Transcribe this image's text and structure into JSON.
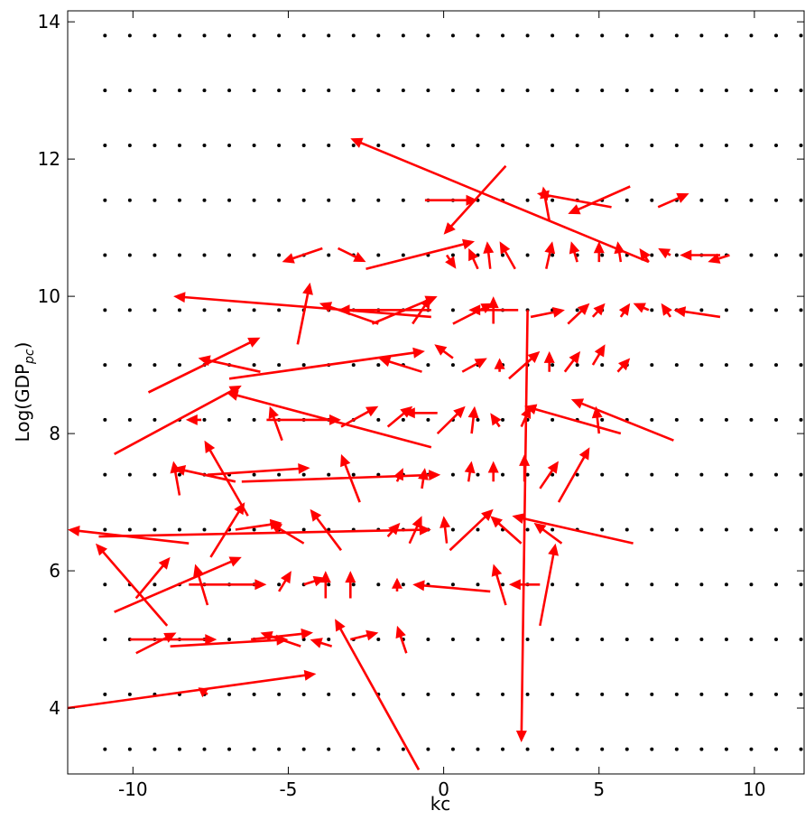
{
  "chart_data": {
    "type": "quiver",
    "xlabel": "kc",
    "ylabel": {
      "base": "Log(GDP",
      "sub": "pc",
      "end": ")"
    },
    "xlim": [
      -12.1,
      11.6
    ],
    "ylim": [
      3.04,
      14.16
    ],
    "xticks": [
      -10,
      -5,
      0,
      5,
      10
    ],
    "yticks": [
      4,
      6,
      8,
      10,
      12,
      14
    ],
    "dot_color": "#000000",
    "color": "#ff0000",
    "dots_x": [
      -10.9,
      -10.1,
      -9.3,
      -8.5,
      -7.7,
      -6.9,
      -6.1,
      -5.3,
      -4.5,
      -3.7,
      -2.9,
      -2.1,
      -1.3,
      -0.5,
      0.3,
      1.1,
      1.9,
      2.7,
      3.5,
      4.3,
      5.1,
      5.9,
      6.7,
      7.5,
      8.3,
      9.1,
      9.9,
      10.7,
      11.5
    ],
    "dots_y": [
      3.4,
      4.2,
      5.0,
      5.8,
      6.6,
      7.4,
      8.2,
      9.0,
      9.8,
      10.6,
      11.4,
      12.2,
      13.0,
      13.8
    ],
    "arrows": [
      [
        6.6,
        10.5,
        -9.6,
        1.8
      ],
      [
        2.0,
        11.9,
        -2.0,
        -1.0
      ],
      [
        -0.6,
        11.4,
        1.7,
        0
      ],
      [
        5.4,
        11.3,
        -2.4,
        0.2
      ],
      [
        6.0,
        11.6,
        -2.0,
        -0.4
      ],
      [
        3.4,
        11.1,
        -0.2,
        0.5
      ],
      [
        6.9,
        11.3,
        1.0,
        0.2
      ],
      [
        -2.5,
        10.4,
        3.5,
        0.4
      ],
      [
        -3.9,
        10.7,
        -1.3,
        -0.2
      ],
      [
        -3.4,
        10.7,
        0.9,
        -0.2
      ],
      [
        0.1,
        10.6,
        0.3,
        -0.2
      ],
      [
        1.1,
        10.4,
        -0.3,
        0.3
      ],
      [
        1.5,
        10.4,
        -0.1,
        0.4
      ],
      [
        2.3,
        10.4,
        -0.5,
        0.4
      ],
      [
        3.3,
        10.4,
        0.2,
        0.4
      ],
      [
        4.3,
        10.5,
        -0.2,
        0.3
      ],
      [
        5.0,
        10.5,
        0,
        0.3
      ],
      [
        5.7,
        10.5,
        -0.1,
        0.3
      ],
      [
        6.6,
        10.5,
        -0.3,
        0.2
      ],
      [
        7.3,
        10.6,
        -0.4,
        0.1
      ],
      [
        8.9,
        10.6,
        -1.3,
        0
      ],
      [
        9.2,
        10.6,
        -0.7,
        -0.1
      ],
      [
        -0.4,
        9.7,
        -8.3,
        0.3
      ],
      [
        -4.7,
        9.3,
        0.4,
        0.9
      ],
      [
        -2.1,
        9.6,
        -1.9,
        0.3
      ],
      [
        -0.4,
        9.8,
        -3.0,
        0
      ],
      [
        -2.3,
        9.6,
        2.1,
        0.4
      ],
      [
        -1.0,
        9.6,
        0.6,
        0.4
      ],
      [
        0.3,
        9.6,
        1.3,
        0.3
      ],
      [
        1.6,
        9.6,
        0,
        0.4
      ],
      [
        2.4,
        9.8,
        -1.6,
        0
      ],
      [
        2.8,
        9.7,
        1.1,
        0.1
      ],
      [
        4.0,
        9.6,
        0.7,
        0.3
      ],
      [
        4.8,
        9.7,
        0.4,
        0.2
      ],
      [
        5.7,
        9.7,
        0.3,
        0.2
      ],
      [
        6.6,
        9.8,
        -0.5,
        0.1
      ],
      [
        7.3,
        9.7,
        -0.3,
        0.2
      ],
      [
        8.9,
        9.7,
        -1.5,
        0.1
      ],
      [
        2.7,
        9.8,
        -0.2,
        -6.3
      ],
      [
        -9.5,
        8.6,
        3.6,
        0.8
      ],
      [
        -6.9,
        8.8,
        6.3,
        0.4
      ],
      [
        -5.9,
        8.9,
        -2.0,
        0.2
      ],
      [
        -0.7,
        8.9,
        -1.4,
        0.2
      ],
      [
        0.3,
        9.1,
        -0.6,
        0.2
      ],
      [
        0.6,
        8.9,
        0.8,
        0.2
      ],
      [
        1.8,
        8.9,
        0,
        0.2
      ],
      [
        2.1,
        8.8,
        1.0,
        0.4
      ],
      [
        3.4,
        8.9,
        0,
        0.3
      ],
      [
        3.9,
        8.9,
        0.5,
        0.3
      ],
      [
        4.8,
        9.0,
        0.4,
        0.3
      ],
      [
        5.6,
        8.9,
        0.4,
        0.2
      ],
      [
        -10.6,
        7.7,
        4.1,
        1.0
      ],
      [
        -0.4,
        7.8,
        -6.6,
        0.8
      ],
      [
        -7.8,
        8.2,
        -0.5,
        0
      ],
      [
        -5.7,
        8.2,
        2.4,
        0
      ],
      [
        -5.2,
        7.9,
        -0.4,
        0.5
      ],
      [
        -3.3,
        8.1,
        1.2,
        0.3
      ],
      [
        -1.8,
        8.1,
        0.8,
        0.3
      ],
      [
        -0.2,
        8.3,
        -1.1,
        0
      ],
      [
        -0.2,
        8.0,
        0.9,
        0.4
      ],
      [
        0.9,
        8.0,
        0.1,
        0.4
      ],
      [
        1.8,
        8.1,
        -0.3,
        0.2
      ],
      [
        2.5,
        8.1,
        0.3,
        0.3
      ],
      [
        5.7,
        8.0,
        -3.1,
        0.4
      ],
      [
        7.4,
        7.9,
        -3.3,
        0.6
      ],
      [
        5.0,
        8.0,
        -0.1,
        0.4
      ],
      [
        -8.5,
        7.1,
        -0.2,
        0.5
      ],
      [
        -6.3,
        6.8,
        -1.4,
        1.1
      ],
      [
        -6.7,
        7.3,
        -2.0,
        0.2
      ],
      [
        -7.6,
        7.4,
        3.3,
        0.1
      ],
      [
        -6.5,
        7.3,
        6.4,
        0.1
      ],
      [
        -2.7,
        7.0,
        -0.6,
        0.7
      ],
      [
        -1.5,
        7.3,
        0.2,
        0.2
      ],
      [
        -0.7,
        7.2,
        0.1,
        0.3
      ],
      [
        0.8,
        7.3,
        0.1,
        0.3
      ],
      [
        1.6,
        7.3,
        0,
        0.3
      ],
      [
        2.6,
        7.3,
        0,
        0.4
      ],
      [
        3.1,
        7.2,
        0.6,
        0.4
      ],
      [
        3.7,
        7.0,
        1.0,
        0.8
      ],
      [
        -8.2,
        6.4,
        -3.9,
        0.2
      ],
      [
        -11.1,
        6.5,
        10.7,
        0.1
      ],
      [
        -7.5,
        6.2,
        1.1,
        0.8
      ],
      [
        -6.7,
        6.6,
        1.5,
        0.1
      ],
      [
        -4.5,
        6.4,
        -1.1,
        0.3
      ],
      [
        -3.3,
        6.3,
        -1.0,
        0.6
      ],
      [
        -1.8,
        6.5,
        0.4,
        0.2
      ],
      [
        -1.1,
        6.4,
        0.4,
        0.4
      ],
      [
        0.1,
        6.4,
        -0.1,
        0.4
      ],
      [
        0.2,
        6.3,
        1.4,
        0.6
      ],
      [
        2.5,
        6.4,
        -1.0,
        0.4
      ],
      [
        6.1,
        6.4,
        -3.9,
        0.4
      ],
      [
        3.8,
        6.4,
        -0.9,
        0.3
      ],
      [
        -8.9,
        5.2,
        -2.3,
        1.2
      ],
      [
        -9.9,
        5.6,
        1.1,
        0.6
      ],
      [
        -10.6,
        5.4,
        4.1,
        0.8
      ],
      [
        -7.6,
        5.5,
        -0.4,
        0.6
      ],
      [
        -8.2,
        5.8,
        2.5,
        0
      ],
      [
        -5.3,
        5.7,
        0.4,
        0.3
      ],
      [
        -4.5,
        5.8,
        0.7,
        0.1
      ],
      [
        -3.8,
        5.6,
        0,
        0.4
      ],
      [
        -3.0,
        5.6,
        0,
        0.4
      ],
      [
        -1.5,
        5.7,
        0,
        0.2
      ],
      [
        1.5,
        5.7,
        -2.5,
        0.1
      ],
      [
        2.0,
        5.5,
        -0.4,
        0.6
      ],
      [
        3.1,
        5.8,
        -1.0,
        0
      ],
      [
        3.1,
        5.2,
        0.5,
        1.2
      ],
      [
        -10.1,
        5.0,
        2.8,
        0
      ],
      [
        -9.9,
        4.8,
        1.3,
        0.3
      ],
      [
        -8.8,
        4.9,
        3.8,
        0.1
      ],
      [
        -6.2,
        5.0,
        2.0,
        0.1
      ],
      [
        -4.6,
        4.9,
        -1.3,
        0.2
      ],
      [
        -3.0,
        5.0,
        0.9,
        0.1
      ],
      [
        -3.6,
        4.9,
        -0.7,
        0.1
      ],
      [
        -1.2,
        4.8,
        -0.3,
        0.4
      ],
      [
        -0.8,
        3.1,
        -2.7,
        2.2
      ],
      [
        -12.1,
        4.0,
        8.0,
        0.5
      ],
      [
        -7.6,
        4.2,
        -0.3,
        0.1
      ]
    ]
  }
}
